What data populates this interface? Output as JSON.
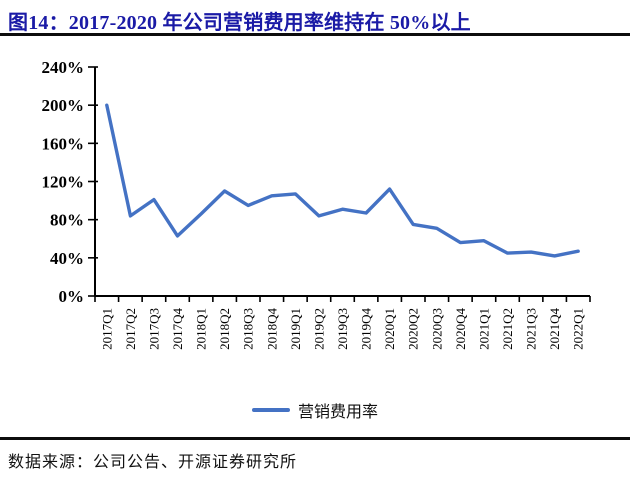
{
  "header": {
    "title": "图14：2017-2020 年公司营销费用率维持在 50%以上"
  },
  "footer": {
    "source": "数据来源：公司公告、开源证券研究所"
  },
  "colors": {
    "accent": "#4472C4",
    "title_blue": "#1a1aa6",
    "rule_black": "#0d0d0d",
    "axis_black": "#000000"
  },
  "chart_data": {
    "type": "line",
    "title": "",
    "xlabel": "",
    "ylabel": "",
    "categories": [
      "2017Q1",
      "2017Q2",
      "2017Q3",
      "2017Q4",
      "2018Q1",
      "2018Q2",
      "2018Q3",
      "2018Q4",
      "2019Q1",
      "2019Q2",
      "2019Q3",
      "2019Q4",
      "2020Q1",
      "2020Q2",
      "2020Q3",
      "2020Q4",
      "2021Q1",
      "2021Q2",
      "2021Q3",
      "2021Q4",
      "2022Q1"
    ],
    "series": [
      {
        "name": "营销费用率",
        "color": "#4472C4",
        "values": [
          200,
          84,
          101,
          63,
          86,
          110,
          95,
          105,
          107,
          84,
          91,
          87,
          112,
          75,
          71,
          56,
          58,
          45,
          46,
          42,
          47
        ]
      }
    ],
    "ylim": [
      0,
      240
    ],
    "ytick_step": 40,
    "ytick_labels": [
      "0%",
      "40%",
      "80%",
      "120%",
      "160%",
      "200%",
      "240%"
    ],
    "grid": false,
    "legend_position": "bottom",
    "x_label_rotation": -90
  }
}
